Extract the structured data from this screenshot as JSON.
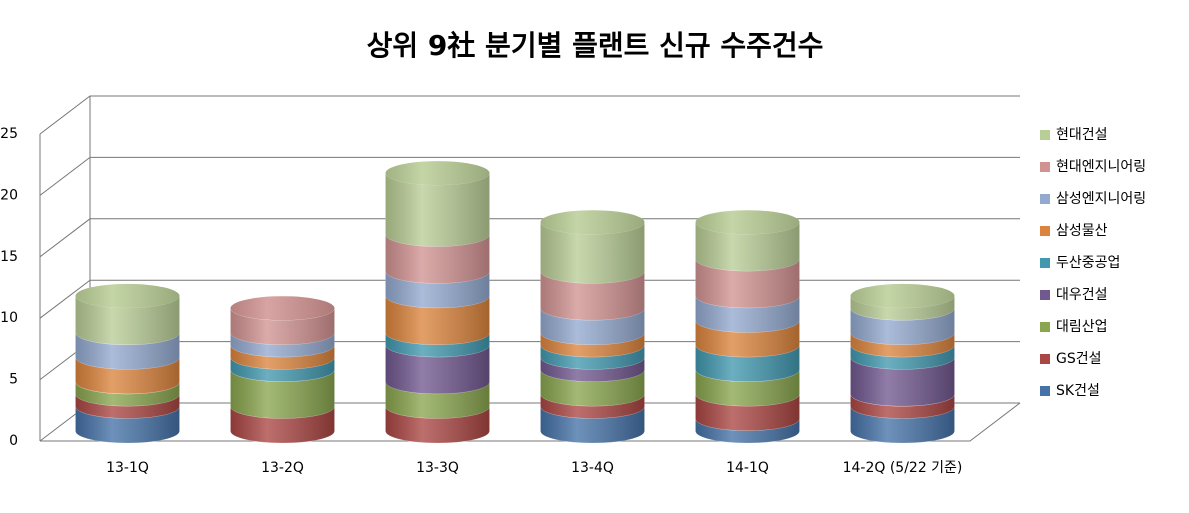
{
  "chart_data": {
    "type": "bar3d-stacked",
    "title": "상위 9社 분기별 플랜트 신규 수주건수",
    "categories": [
      "13-1Q",
      "13-2Q",
      "13-3Q",
      "13-4Q",
      "14-1Q",
      "14-2Q (5/22 기준)"
    ],
    "series": [
      {
        "name": "SK건설",
        "color": "#4572A7",
        "values": [
          2,
          0,
          0,
          2,
          1,
          2
        ]
      },
      {
        "name": "GS건설",
        "color": "#AA4643",
        "values": [
          1,
          2,
          2,
          1,
          2,
          1
        ]
      },
      {
        "name": "대림산업",
        "color": "#89A54E",
        "values": [
          1,
          3,
          2,
          2,
          2,
          0
        ]
      },
      {
        "name": "대우건설",
        "color": "#71588F",
        "values": [
          0,
          0,
          3,
          1,
          0,
          3
        ]
      },
      {
        "name": "두산중공업",
        "color": "#4198AF",
        "values": [
          0,
          1,
          1,
          1,
          2,
          1
        ]
      },
      {
        "name": "삼성물산",
        "color": "#DB843D",
        "values": [
          2,
          1,
          3,
          1,
          2,
          1
        ]
      },
      {
        "name": "삼성엔지니어링",
        "color": "#93A9CF",
        "values": [
          2,
          1,
          2,
          2,
          2,
          2
        ]
      },
      {
        "name": "현대엔지니어링",
        "color": "#D19392",
        "values": [
          0,
          2,
          3,
          3,
          3,
          0
        ]
      },
      {
        "name": "현대건설",
        "color": "#B9CD96",
        "values": [
          3,
          0,
          5,
          4,
          3,
          1
        ]
      }
    ],
    "ylim": [
      0,
      25
    ],
    "yticks": [
      0,
      5,
      10,
      15,
      20,
      25
    ],
    "grid": true,
    "legend": "right"
  }
}
